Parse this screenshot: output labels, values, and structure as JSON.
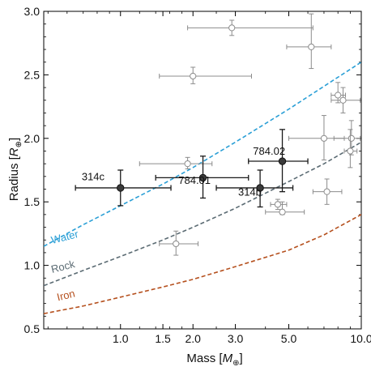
{
  "chart_data": {
    "type": "scatter",
    "xlabel_main": "Mass [",
    "xlabel_sym": "M",
    "xlabel_sub": "⊕",
    "xlabel_end": "]",
    "ylabel_main": "Radius [",
    "ylabel_sym": "R",
    "ylabel_sub": "⊕",
    "ylabel_end": "]",
    "xscale": "log",
    "xlim": [
      0.48,
      10.0
    ],
    "ylim": [
      0.5,
      3.0
    ],
    "xticks_major": [
      {
        "value": 1.0,
        "label": "1.0"
      },
      {
        "value": 1.5,
        "label": "1.5"
      },
      {
        "value": 2.0,
        "label": "2.0"
      },
      {
        "value": 3.0,
        "label": "3.0"
      },
      {
        "value": 5.0,
        "label": "5.0"
      },
      {
        "value": 10.0,
        "label": "10.0"
      }
    ],
    "xticks_minor": [
      0.5,
      0.6,
      0.7,
      0.8,
      0.9,
      1.2,
      1.4,
      1.6,
      1.8,
      2.5,
      4.0,
      6.0,
      7.0,
      8.0,
      9.0
    ],
    "yticks": [
      {
        "value": 0.5,
        "label": "0.5"
      },
      {
        "value": 1.0,
        "label": "1.0"
      },
      {
        "value": 1.5,
        "label": "1.5"
      },
      {
        "value": 2.0,
        "label": "2.0"
      },
      {
        "value": 2.5,
        "label": "2.5"
      },
      {
        "value": 3.0,
        "label": "3.0"
      }
    ],
    "yticks_minor": [
      0.6,
      0.7,
      0.8,
      0.9,
      1.1,
      1.2,
      1.3,
      1.4,
      1.6,
      1.7,
      1.8,
      1.9,
      2.1,
      2.2,
      2.3,
      2.4,
      2.6,
      2.7,
      2.8,
      2.9
    ],
    "curves": [
      {
        "name": "Water",
        "color": "#2a9fd6",
        "points": [
          [
            0.48,
            1.15
          ],
          [
            0.7,
            1.32
          ],
          [
            1.0,
            1.47
          ],
          [
            1.5,
            1.64
          ],
          [
            2.0,
            1.77
          ],
          [
            3.0,
            1.97
          ],
          [
            5.0,
            2.23
          ],
          [
            7.0,
            2.41
          ],
          [
            10.0,
            2.6
          ]
        ],
        "label_at": [
          0.52,
          1.17
        ]
      },
      {
        "name": "Rock",
        "color": "#5b6b73",
        "points": [
          [
            0.48,
            0.84
          ],
          [
            0.7,
            0.96
          ],
          [
            1.0,
            1.07
          ],
          [
            1.5,
            1.2
          ],
          [
            2.0,
            1.3
          ],
          [
            3.0,
            1.45
          ],
          [
            5.0,
            1.66
          ],
          [
            7.0,
            1.8
          ],
          [
            10.0,
            1.97
          ]
        ],
        "label_at": [
          0.52,
          0.94
        ]
      },
      {
        "name": "Iron",
        "color": "#b5501e",
        "points": [
          [
            0.48,
            0.62
          ],
          [
            0.7,
            0.68
          ],
          [
            1.0,
            0.75
          ],
          [
            1.5,
            0.83
          ],
          [
            2.0,
            0.89
          ],
          [
            3.0,
            0.99
          ],
          [
            5.0,
            1.12
          ],
          [
            7.0,
            1.24
          ],
          [
            10.0,
            1.4
          ]
        ],
        "label_at": [
          0.55,
          0.72
        ]
      }
    ],
    "highlighted": [
      {
        "name": "314c",
        "x": 1.0,
        "y": 1.61,
        "xerr": [
          0.65,
          1.62
        ],
        "yerr": [
          1.47,
          1.75
        ],
        "label_at": [
          0.69,
          1.67
        ]
      },
      {
        "name": "784.01",
        "x": 2.2,
        "y": 1.69,
        "xerr": [
          1.4,
          3.4
        ],
        "yerr": [
          1.53,
          1.86
        ],
        "label_at": [
          1.74,
          1.64
        ]
      },
      {
        "name": "314b",
        "x": 3.8,
        "y": 1.61,
        "xerr": [
          2.5,
          5.2
        ],
        "yerr": [
          1.46,
          1.75
        ],
        "label_at": [
          3.08,
          1.55
        ]
      },
      {
        "name": "784.02",
        "x": 4.7,
        "y": 1.82,
        "xerr": [
          3.4,
          6.0
        ],
        "yerr": [
          1.58,
          2.07
        ],
        "label_at": [
          3.55,
          1.87
        ]
      }
    ],
    "others": [
      {
        "x": 2.9,
        "y": 2.87,
        "xerr": [
          1.9,
          6.3
        ],
        "yerr": [
          2.81,
          2.93
        ]
      },
      {
        "x": 6.2,
        "y": 2.72,
        "xerr": [
          4.9,
          7.5
        ],
        "yerr": [
          2.55,
          2.98
        ]
      },
      {
        "x": 2.0,
        "y": 2.49,
        "xerr": [
          1.45,
          3.5
        ],
        "yerr": [
          2.43,
          2.56
        ]
      },
      {
        "x": 8.0,
        "y": 2.34,
        "xerr": [
          7.5,
          8.6
        ],
        "yerr": [
          2.28,
          2.44
        ]
      },
      {
        "x": 8.4,
        "y": 2.3,
        "xerr": [
          7.5,
          9.9
        ],
        "yerr": [
          2.2,
          2.4
        ]
      },
      {
        "x": 7.0,
        "y": 2.0,
        "xerr": [
          5.0,
          8.5
        ],
        "yerr": [
          1.83,
          2.18
        ]
      },
      {
        "x": 9.1,
        "y": 2.0,
        "xerr": [
          7.7,
          9.9
        ],
        "yerr": [
          1.87,
          2.14
        ]
      },
      {
        "x": 9.0,
        "y": 1.9,
        "xerr": [
          8.5,
          9.6
        ],
        "yerr": [
          1.77,
          2.07
        ]
      },
      {
        "x": 1.9,
        "y": 1.8,
        "xerr": [
          1.2,
          2.4
        ],
        "yerr": [
          1.76,
          1.85
        ]
      },
      {
        "x": 7.2,
        "y": 1.58,
        "xerr": [
          6.3,
          8.3
        ],
        "yerr": [
          1.48,
          1.68
        ]
      },
      {
        "x": 4.5,
        "y": 1.48,
        "xerr": [
          4.2,
          4.9
        ],
        "yerr": [
          1.44,
          1.52
        ]
      },
      {
        "x": 4.7,
        "y": 1.42,
        "xerr": [
          4.0,
          5.8
        ],
        "yerr": [
          1.4,
          1.5
        ]
      },
      {
        "x": 1.7,
        "y": 1.17,
        "xerr": [
          1.45,
          2.1
        ],
        "yerr": [
          1.08,
          1.27
        ]
      }
    ]
  }
}
